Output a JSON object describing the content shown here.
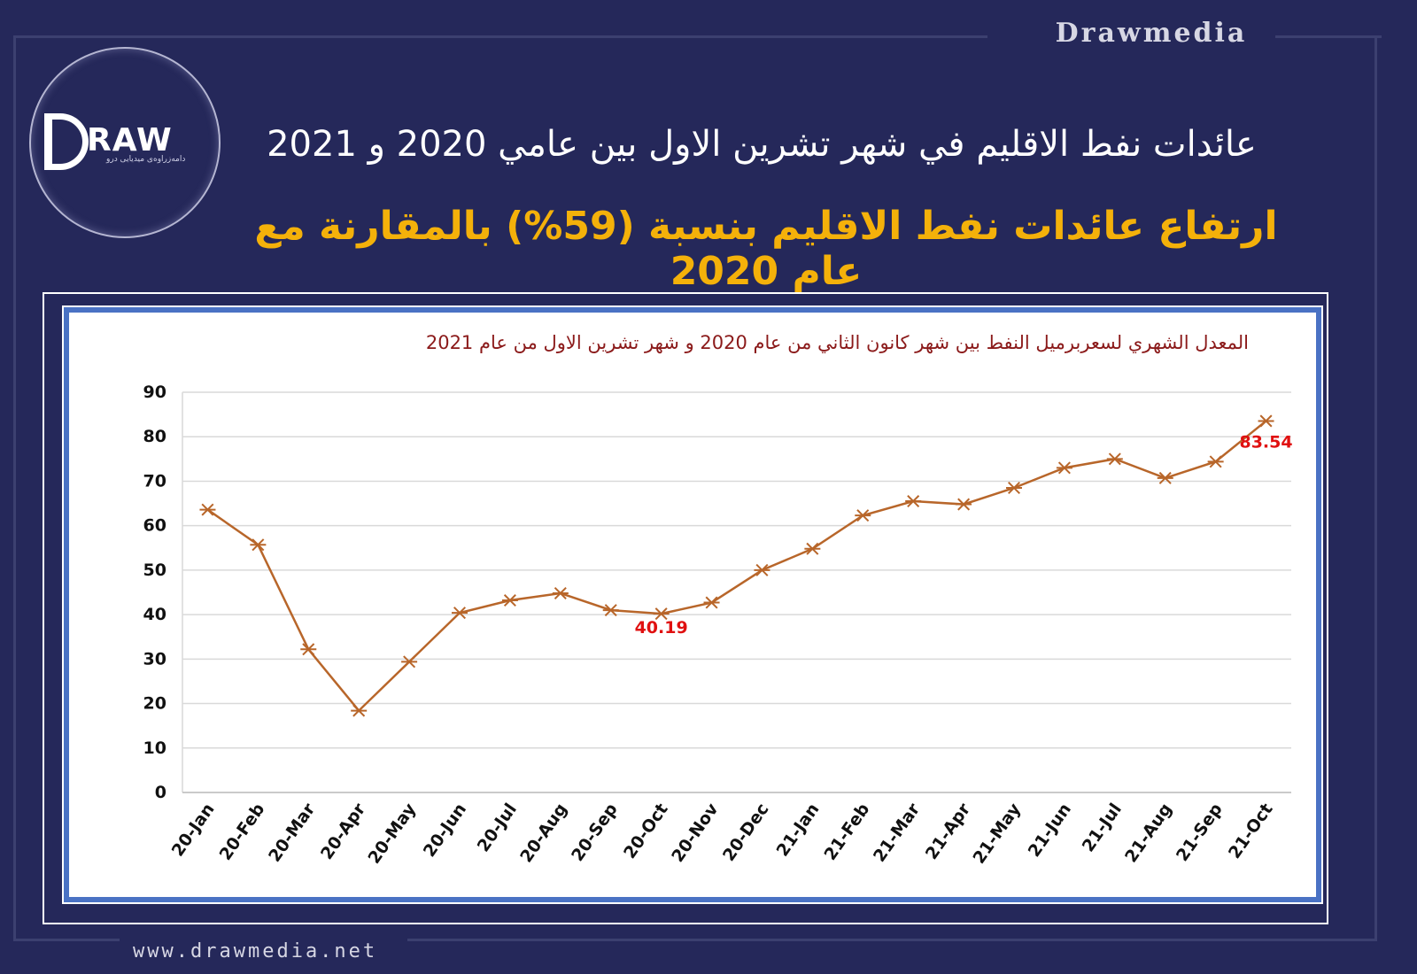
{
  "brand": "Drawmedia",
  "logo": {
    "word": "RAW",
    "tagline": "دامەزراوەی میدیایی درو"
  },
  "header": {
    "title": "عائدات نفط الاقليم في شهر تشرين الاول  بين عامي 2020 و 2021",
    "subtitle": "ارتفاع عائدات نفط الاقليم بنسبة (59%) بالمقارنة مع عام 2020"
  },
  "footer": {
    "url": "www.drawmedia.net"
  },
  "colors": {
    "background": "#25285a",
    "accent": "#f4b10a",
    "line": "#b8662a",
    "label": "#e01010",
    "frame": "#4a72c4"
  },
  "chart_data": {
    "type": "line",
    "title": "المعدل الشهري لسعربرميل النفط بين شهر كانون الثاني من عام 2020 و شهر تشرين الاول من عام 2021",
    "categories": [
      "20-Jan",
      "20-Feb",
      "20-Mar",
      "20-Apr",
      "20-May",
      "20-Jun",
      "20-Jul",
      "20-Aug",
      "20-Sep",
      "20-Oct",
      "20-Nov",
      "20-Dec",
      "21-Jan",
      "21-Feb",
      "21-Mar",
      "21-Apr",
      "21-May",
      "21-Jun",
      "21-Jul",
      "21-Aug",
      "21-Sep",
      "21-Oct"
    ],
    "series": [
      {
        "values": [
          63.6,
          55.7,
          32.2,
          18.4,
          29.4,
          40.4,
          43.2,
          44.8,
          41.0,
          40.19,
          42.7,
          50.0,
          54.8,
          62.3,
          65.5,
          64.8,
          68.5,
          73.0,
          75.0,
          70.7,
          74.4,
          83.54
        ]
      }
    ],
    "data_labels": [
      {
        "index": 9,
        "text": "40.19"
      },
      {
        "index": 21,
        "text": "83.54"
      }
    ],
    "yticks": [
      0,
      10,
      20,
      30,
      40,
      50,
      60,
      70,
      80,
      90
    ],
    "ylim": [
      0,
      90
    ],
    "grid": true,
    "marker": "asterisk"
  }
}
